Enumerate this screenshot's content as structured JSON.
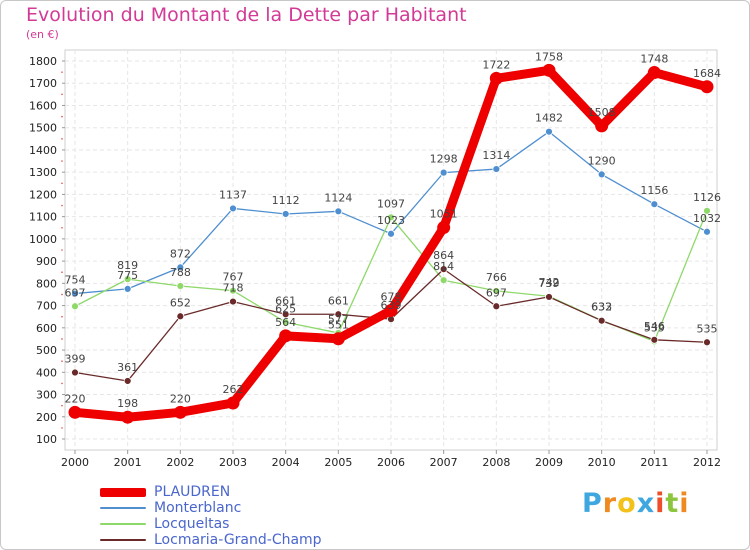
{
  "title": "Evolution du Montant de la Dette par Habitant",
  "subtitle": "(en €)",
  "brand": {
    "letters": [
      "P",
      "r",
      "o",
      "x",
      "i",
      "t",
      "i"
    ],
    "colors": [
      "#3fa7e0",
      "#ee8a1f",
      "#f2c21b",
      "#3fa7e0",
      "#ee4f2a",
      "#8cc63f",
      "#ee8a1f"
    ]
  },
  "chart_data": {
    "type": "line",
    "title": "Evolution du Montant de la Dette par Habitant",
    "ylabel": "(en €)",
    "xlabel": "",
    "x": [
      "2000",
      "2001",
      "2002",
      "2003",
      "2004",
      "2005",
      "2006",
      "2007",
      "2008",
      "2009",
      "2010",
      "2011",
      "2012"
    ],
    "ylim": [
      100,
      1800
    ],
    "yticks": [
      100,
      200,
      300,
      400,
      500,
      600,
      700,
      800,
      900,
      1000,
      1100,
      1200,
      1300,
      1400,
      1500,
      1600,
      1700,
      1800
    ],
    "grid": true,
    "legend": "bottom-left",
    "series": [
      {
        "name": "PLAUDREN",
        "color": "#ee0000",
        "emphasis": true,
        "values": [
          220,
          198,
          220,
          262,
          564,
          551,
          678,
          1051,
          1722,
          1758,
          1508,
          1748,
          1684
        ],
        "labels": [
          "220",
          "198",
          "220",
          "262",
          "564",
          "551",
          "678",
          "1051",
          "1722",
          "1758",
          "1508",
          "1748",
          "1684"
        ]
      },
      {
        "name": "Monterblanc",
        "color": "#4f8fd0",
        "values": [
          754,
          775,
          872,
          1137,
          1112,
          1124,
          1023,
          1298,
          1314,
          1482,
          1290,
          1156,
          1032
        ],
        "labels": [
          "754",
          "775",
          "872",
          "1137",
          "1112",
          "1124",
          "1023",
          "1298",
          "1314",
          "1482",
          "1290",
          "1156",
          "1032"
        ]
      },
      {
        "name": "Locqueltas",
        "color": "#8fd86a",
        "values": [
          697,
          819,
          788,
          767,
          625,
          577,
          1097,
          814,
          766,
          742,
          633,
          539,
          1126
        ],
        "labels": [
          "697",
          "819",
          "788",
          "767",
          "625",
          "577",
          "1097",
          "814",
          "766",
          "742",
          "633",
          "539",
          "1126"
        ]
      },
      {
        "name": "Locmaria-Grand-Champ",
        "color": "#6a2a2a",
        "values": [
          399,
          361,
          652,
          718,
          661,
          661,
          639,
          864,
          697,
          739,
          632,
          546,
          535
        ],
        "labels": [
          "399",
          "361",
          "652",
          "718",
          "661",
          "661",
          "639",
          "864",
          "697",
          "739",
          "632",
          "546",
          "535"
        ]
      }
    ]
  }
}
